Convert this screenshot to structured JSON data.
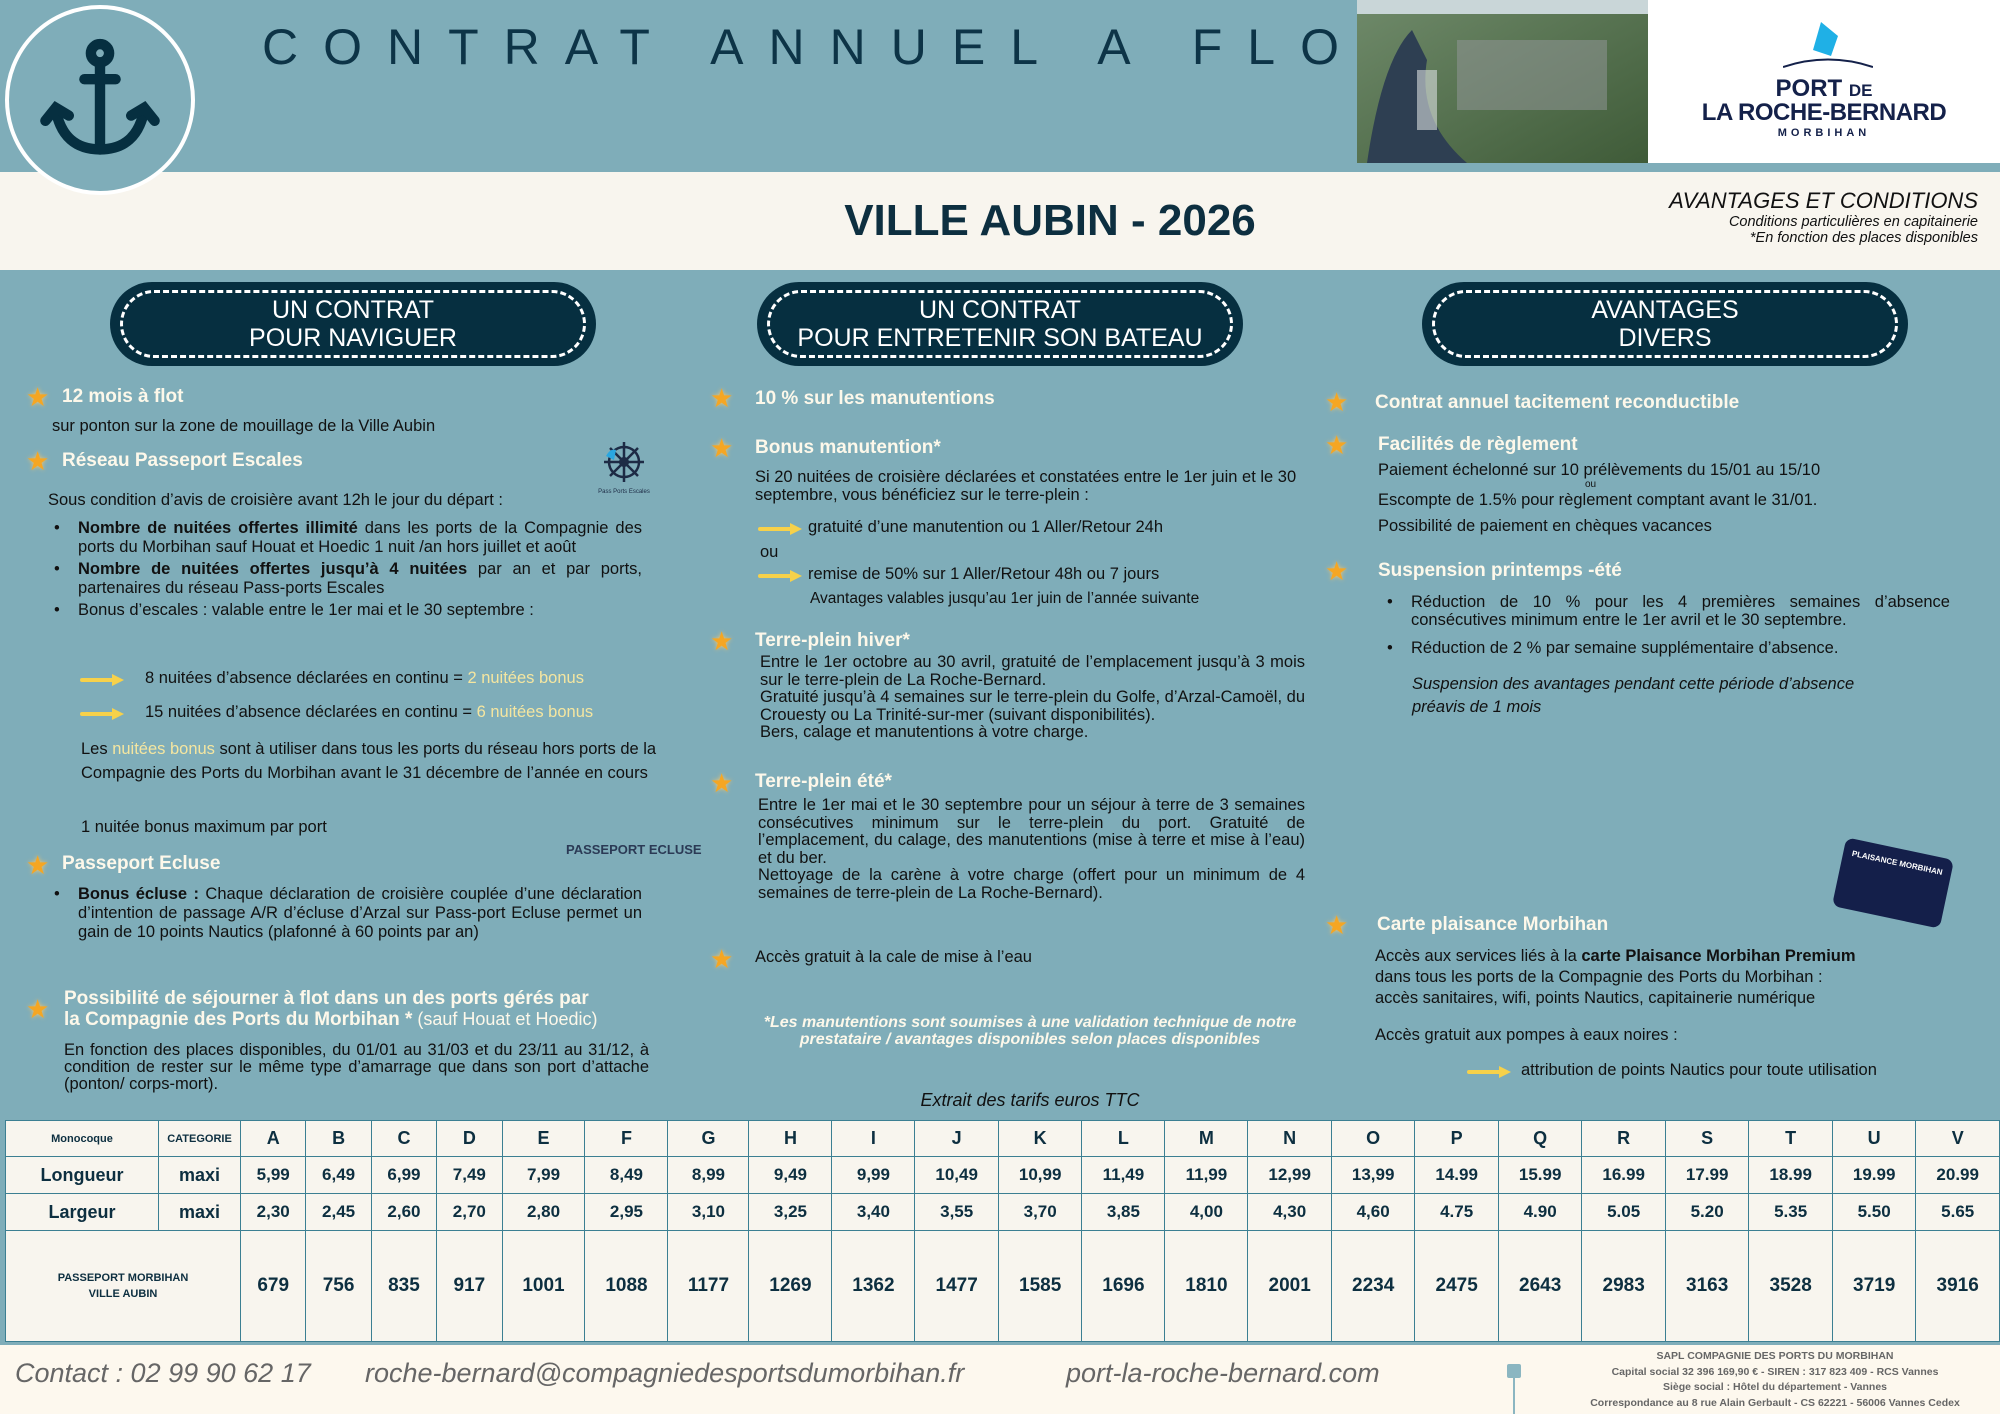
{
  "header": {
    "title": "CONTRAT ANNUEL A FLOT",
    "heading": "VILLE AUBIN - 2026",
    "logo": {
      "line1": "PORT",
      "line1b": "DE",
      "line2": "LA ROCHE-BERNARD",
      "line3": "MORBIHAN"
    },
    "conditions": {
      "title": "AVANTAGES ET CONDITIONS",
      "sub1": "Conditions particulières en capitainerie",
      "sub2": "*En fonction des places disponibles"
    }
  },
  "pills": [
    {
      "l1": "UN CONTRAT",
      "l2": "POUR NAVIGUER"
    },
    {
      "l1": "UN CONTRAT",
      "l2": "POUR ENTRETENIR SON BATEAU"
    },
    {
      "l1": "AVANTAGES",
      "l2": "DIVERS"
    }
  ],
  "colors": {
    "background": "#7fadb9",
    "dark": "#062f40",
    "cream": "#f8f5ee",
    "star": "#f5a623",
    "arrow": "#f7d14a",
    "highlight": "#f5e6a0"
  },
  "left": {
    "s1_title": "12 mois à flot",
    "s1_text": "sur ponton sur la zone de mouillage de la Ville Aubin",
    "s2_title": "Réseau Passeport Escales",
    "s2_logo": "Pass Ports Escales",
    "s2_intro": "Sous condition d’avis de croisière avant 12h le jour du départ :",
    "b1_bold": "Nombre de nuitées offertes illimité",
    "b1_text": " dans les ports de la Compagnie des ports du Morbihan sauf Houat et Hoedic 1 nuit /an hors juillet et août",
    "b2_bold": "Nombre de nuitées offertes jusqu’à 4 nuitées",
    "b2_text": " par an et par ports, partenaires du réseau Pass-ports Escales",
    "b3_text": "Bonus d’escales : valable entre le 1er mai et le 30 septembre :",
    "a1_text": "8 nuitées d’absence déclarées en continu = ",
    "a1_hl": "2 nuitées bonus",
    "a2_text": "15 nuitées d’absence déclarées en continu = ",
    "a2_hl": "6 nuitées bonus",
    "n1": "Les ",
    "n1_hl": "nuitées bonus",
    "n1_rest": " sont à utiliser dans tous les ports du réseau hors ports de la Compagnie des Ports du Morbihan avant le 31 décembre de l’année en cours",
    "n2": "1 nuitée bonus maximum par port",
    "s3_title": "Passeport Ecluse",
    "s3_logo": "PASSEPORT ECLUSE",
    "s3_bold": "Bonus écluse :",
    "s3_text": " Chaque déclaration de croisière couplée d’une déclaration d’intention de passage A/R d’écluse d’Arzal sur Pass-port Ecluse permet un gain de 10 points Nautics (plafonné à 60 points par an)",
    "s4_title1": "Possibilité de séjourner à flot dans un des ports gérés par",
    "s4_title2": "la Compagnie des Ports du Morbihan *",
    "s4_note": " (sauf Houat et Hoedic)",
    "s4_text": "En fonction des places disponibles, du 01/01 au 31/03 et du 23/11  au 31/12, à condition de rester sur le même type d’amarrage que dans son port d’attache (ponton/ corps-mort)."
  },
  "middle": {
    "s1_title": "10 % sur les manutentions",
    "s2_title": "Bonus manutention*",
    "s2_text": "Si 20 nuitées de croisière déclarées et constatées entre le 1er juin et le 30 septembre, vous bénéficiez sur le terre-plein :",
    "a1": "gratuité d’une manutention ou  1 Aller/Retour 24h",
    "or": "ou",
    "a2": "remise de 50% sur 1 Aller/Retour 48h ou 7 jours",
    "a2_note": "Avantages valables jusqu’au 1er juin de l’année suivante",
    "s3_title": "Terre-plein hiver*",
    "s3_p1": "Entre le 1er octobre au 30 avril, gratuité de l’emplacement jusqu’à 3 mois sur le terre-plein de La Roche-Bernard.",
    "s3_p2": "Gratuité jusqu’à  4 semaines sur le terre-plein du Golfe, d’Arzal-Camoël, du Crouesty ou La Trinité-sur-mer (suivant disponibilités).",
    "s3_p3": "Bers, calage et manutentions à votre charge.",
    "s4_title": "Terre-plein été*",
    "s4_p1": "Entre le 1er mai et le 30 septembre pour un séjour à terre de 3 semaines consécutives minimum sur le terre-plein du port. Gratuité de l’emplacement, du calage, des manutentions (mise à terre et mise à l’eau) et du ber.",
    "s4_p2": "Nettoyage de la carène à votre charge (offert pour un minimum de 4 semaines de terre-plein de La Roche-Bernard).",
    "s5_text": "Accès gratuit à la cale de mise à l’eau",
    "footnote": "*Les manutentions sont soumises à une validation technique de notre prestataire / avantages disponibles selon places disponibles",
    "table_caption": "Extrait des tarifs euros TTC"
  },
  "right": {
    "s1_title": "Contrat annuel tacitement reconductible",
    "s2_title": "Facilités de règlement",
    "s2_l1": "Paiement échelonné sur 10 prélèvements du 15/01 au 15/10",
    "s2_or": "ou",
    "s2_l2": "Escompte de 1.5% pour règlement comptant avant le 31/01.",
    "s2_l3": "Possibilité de paiement en chèques vacances",
    "s3_title": "Suspension printemps -été",
    "s3_b1": "Réduction de 10 % pour les 4 premières semaines d’absence consécutives minimum entre le 1er avril et le 30 septembre.",
    "s3_b2": "Réduction de 2 % par semaine supplémentaire d’absence.",
    "s3_note1": "Suspension des avantages pendant cette période d’absence",
    "s3_note2": "préavis de 1 mois",
    "card": "PLAISANCE MORBIHAN",
    "s4_title": "Carte plaisance Morbihan",
    "s4_t1": "Accès aux services liés à la ",
    "s4_bold": "carte Plaisance Morbihan Premium",
    "s4_t2": "dans tous les ports de la Compagnie des Ports du Morbihan :",
    "s4_t3": "accès sanitaires, wifi, points Nautics, capitainerie numérique",
    "s4_t4": "Accès gratuit aux pompes à eaux noires :",
    "s4_arrow": "attribution de points Nautics pour toute utilisation"
  },
  "table": {
    "h1": "Monocoque",
    "h2": "CATEGORIE",
    "r1": "Longueur",
    "r2": "Largeur",
    "unit": "maxi",
    "r3a": "PASSEPORT MORBIHAN",
    "r3b": "VILLE AUBIN",
    "categories": [
      "A",
      "B",
      "C",
      "D",
      "E",
      "F",
      "G",
      "H",
      "I",
      "J",
      "K",
      "L",
      "M",
      "N",
      "O",
      "P",
      "Q",
      "R",
      "S",
      "T",
      "U",
      "V"
    ],
    "longueur": [
      "5,99",
      "6,49",
      "6,99",
      "7,49",
      "7,99",
      "8,49",
      "8,99",
      "9,49",
      "9,99",
      "10,49",
      "10,99",
      "11,49",
      "11,99",
      "12,99",
      "13,99",
      "14.99",
      "15.99",
      "16.99",
      "17.99",
      "18.99",
      "19.99",
      "20.99"
    ],
    "largeur": [
      "2,30",
      "2,45",
      "2,60",
      "2,70",
      "2,80",
      "2,95",
      "3,10",
      "3,25",
      "3,40",
      "3,55",
      "3,70",
      "3,85",
      "4,00",
      "4,30",
      "4,60",
      "4.75",
      "4.90",
      "5.05",
      "5.20",
      "5.35",
      "5.50",
      "5.65"
    ],
    "prix": [
      "679",
      "756",
      "835",
      "917",
      "1001",
      "1088",
      "1177",
      "1269",
      "1362",
      "1477",
      "1585",
      "1696",
      "1810",
      "2001",
      "2234",
      "2475",
      "2643",
      "2983",
      "3163",
      "3528",
      "3719",
      "3916"
    ]
  },
  "footer": {
    "contact": "Contact :  02 99 90 62 17",
    "email": "roche-bernard@compagniedesportsdumorbihan.fr",
    "site": "port-la-roche-bernard.com",
    "legal": [
      "SAPL COMPAGNIE DES PORTS DU MORBIHAN",
      "Capital social 32 396 169,90 € - SIREN : 317 823 409 - RCS Vannes",
      "Siège social : Hôtel du département - Vannes",
      "Correspondance au 8 rue Alain Gerbault - CS 62221 - 56006 Vannes Cedex"
    ]
  }
}
